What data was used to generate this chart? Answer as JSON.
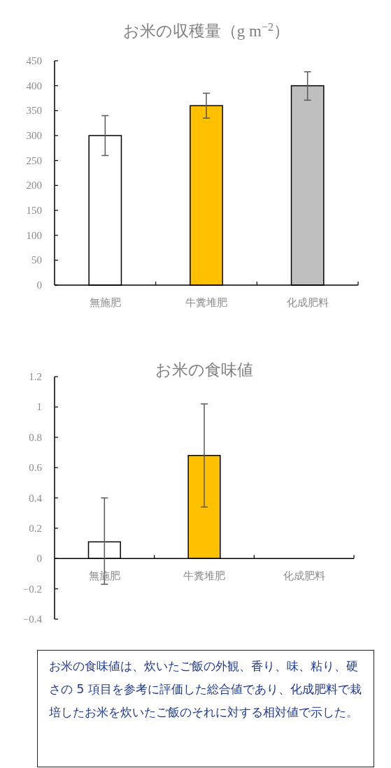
{
  "chart_data": [
    {
      "type": "bar",
      "title": "お米の収穫量（g m$^{−2}$）",
      "categories": [
        "無施肥",
        "牛糞堆肥",
        "化成肥料"
      ],
      "values": [
        300,
        360,
        400
      ],
      "errors": [
        [
          260,
          340
        ],
        [
          335,
          385
        ],
        [
          371,
          428
        ]
      ],
      "colors": [
        "#ffffff",
        "#ffc000",
        "#bfbfbf"
      ],
      "ylim": [
        0,
        450
      ],
      "yticks": [
        0,
        50,
        100,
        150,
        200,
        250,
        300,
        350,
        400,
        450
      ]
    },
    {
      "type": "bar",
      "title": "お米の食味値",
      "categories": [
        "無施肥",
        "牛糞堆肥",
        "化成肥料"
      ],
      "values": [
        0.11,
        0.68,
        0
      ],
      "errors": [
        [
          -0.17,
          0.4
        ],
        [
          0.34,
          1.02
        ],
        null
      ],
      "colors": [
        "#ffffff",
        "#ffc000",
        "#bfbfbf"
      ],
      "ylim": [
        -0.4,
        1.2
      ],
      "yticks": [
        -0.4,
        -0.2,
        0,
        0.2,
        0.4,
        0.6,
        0.8,
        1,
        1.2
      ],
      "annotations": [
        "お米の食味値は、炊いたご飯の外観、香り、味、粘り、硬さの 5 項目を参考に評価した総合値であり、化成肥料で栽培したお米を炊いたご飯のそれに対する相対値で示した。"
      ]
    }
  ]
}
